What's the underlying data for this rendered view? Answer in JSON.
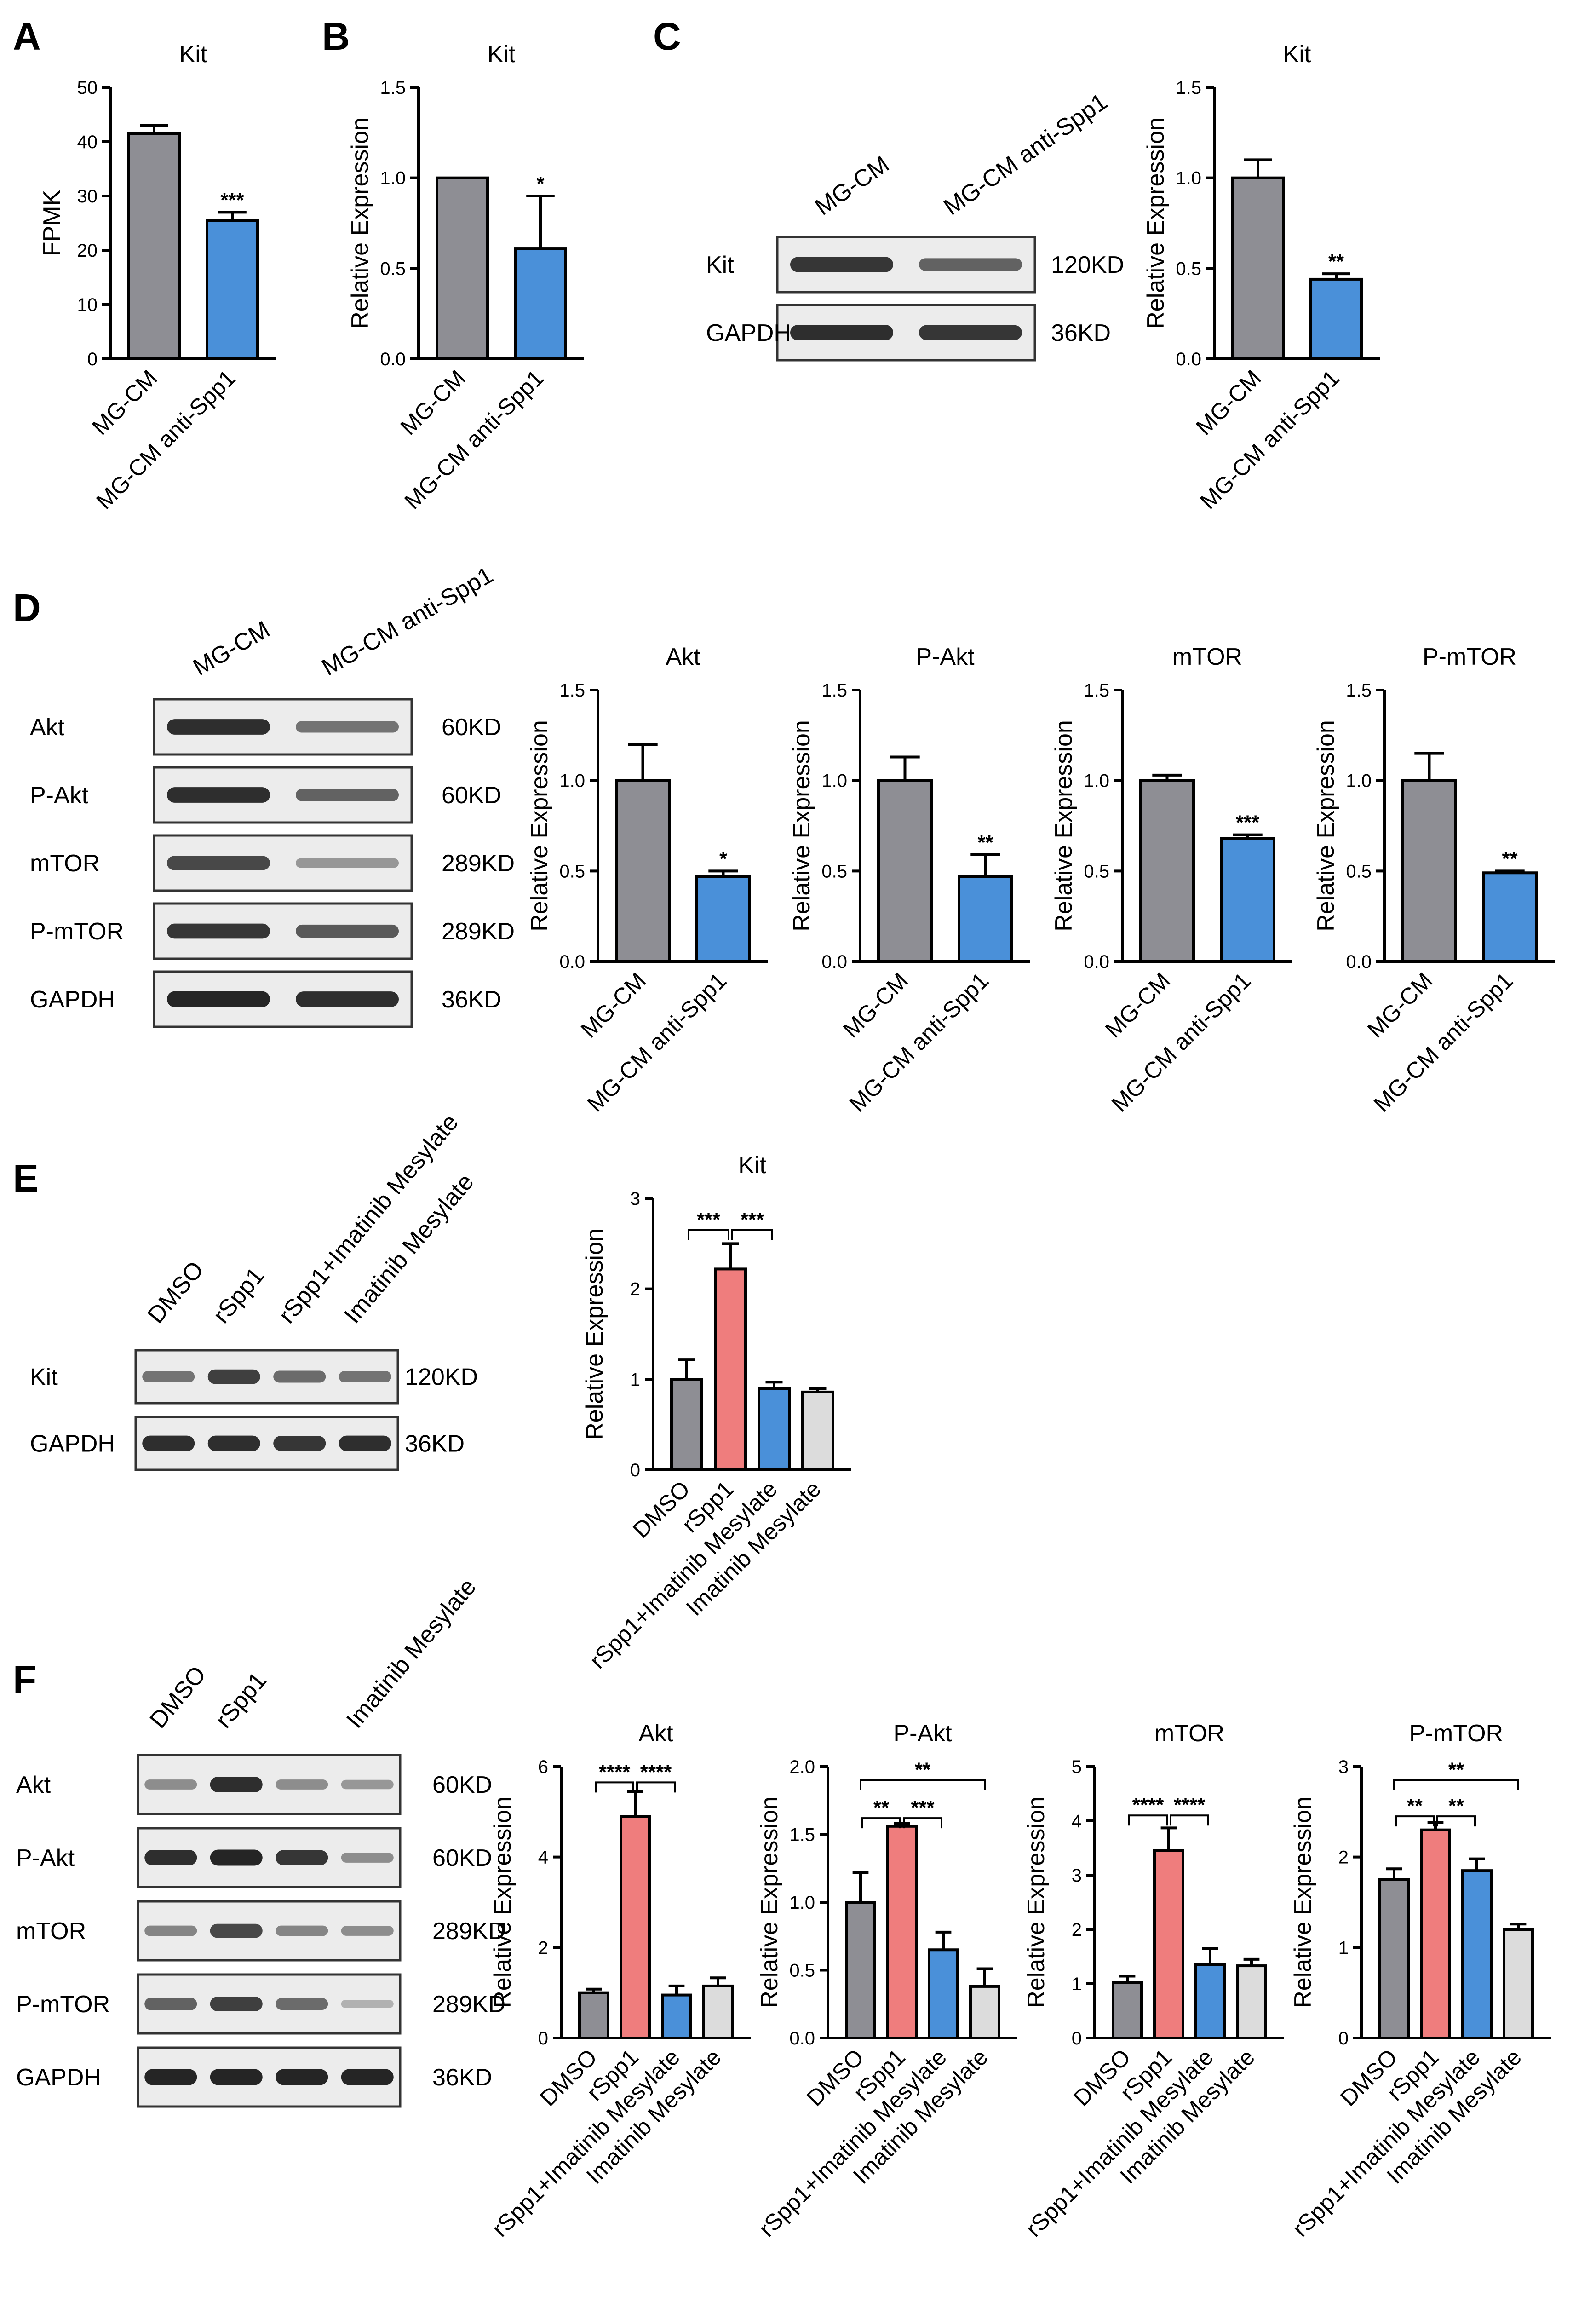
{
  "panels": {
    "A": "A",
    "B": "B",
    "C": "C",
    "D": "D",
    "E": "E",
    "F": "F"
  },
  "colors": {
    "gray": "#8e8e94",
    "blue": "#4a90d9",
    "red": "#ef7d7d",
    "light": "#dcdcdc"
  },
  "chart_data": [
    {
      "id": "A",
      "type": "bar",
      "title": "Kit",
      "ylabel": "FPMK",
      "ylim": [
        0,
        50
      ],
      "ticks": [
        "0",
        "10",
        "20",
        "30",
        "40",
        "50"
      ],
      "categories": [
        "MG-CM",
        "MG-CM anti-Spp1"
      ],
      "values": [
        41.5,
        25.5
      ],
      "errors": [
        1.5,
        1.5
      ],
      "colors": [
        "gray",
        "blue"
      ],
      "stars": [
        "",
        "***"
      ],
      "brackets": []
    },
    {
      "id": "B",
      "type": "bar",
      "title": "Kit",
      "ylabel": "Relative Expression",
      "ylim": [
        0,
        1.5
      ],
      "ticks": [
        "0.0",
        "0.5",
        "1.0",
        "1.5"
      ],
      "categories": [
        "MG-CM",
        "MG-CM anti-Spp1"
      ],
      "values": [
        1.0,
        0.61
      ],
      "errors": [
        0,
        0.29
      ],
      "colors": [
        "gray",
        "blue"
      ],
      "stars": [
        "",
        "*"
      ],
      "brackets": []
    },
    {
      "id": "C",
      "type": "bar",
      "title": "Kit",
      "ylabel": "Relative Expression",
      "ylim": [
        0,
        1.5
      ],
      "ticks": [
        "0.0",
        "0.5",
        "1.0",
        "1.5"
      ],
      "categories": [
        "MG-CM",
        "MG-CM anti-Spp1"
      ],
      "values": [
        1.0,
        0.44
      ],
      "errors": [
        0.1,
        0.03
      ],
      "colors": [
        "gray",
        "blue"
      ],
      "stars": [
        "",
        "**"
      ],
      "brackets": []
    },
    {
      "id": "D1",
      "type": "bar",
      "title": "Akt",
      "ylabel": "Relative Expression",
      "ylim": [
        0,
        1.5
      ],
      "ticks": [
        "0.0",
        "0.5",
        "1.0",
        "1.5"
      ],
      "categories": [
        "MG-CM",
        "MG-CM anti-Spp1"
      ],
      "values": [
        1.0,
        0.47
      ],
      "errors": [
        0.2,
        0.03
      ],
      "colors": [
        "gray",
        "blue"
      ],
      "stars": [
        "",
        "*"
      ],
      "brackets": []
    },
    {
      "id": "D2",
      "type": "bar",
      "title": "P-Akt",
      "ylabel": "Relative Expression",
      "ylim": [
        0,
        1.5
      ],
      "ticks": [
        "0.0",
        "0.5",
        "1.0",
        "1.5"
      ],
      "categories": [
        "MG-CM",
        "MG-CM anti-Spp1"
      ],
      "values": [
        1.0,
        0.47
      ],
      "errors": [
        0.13,
        0.12
      ],
      "colors": [
        "gray",
        "blue"
      ],
      "stars": [
        "",
        "**"
      ],
      "brackets": []
    },
    {
      "id": "D3",
      "type": "bar",
      "title": "mTOR",
      "ylabel": "Relative Expression",
      "ylim": [
        0,
        1.5
      ],
      "ticks": [
        "0.0",
        "0.5",
        "1.0",
        "1.5"
      ],
      "categories": [
        "MG-CM",
        "MG-CM anti-Spp1"
      ],
      "values": [
        1.0,
        0.68
      ],
      "errors": [
        0.03,
        0.02
      ],
      "colors": [
        "gray",
        "blue"
      ],
      "stars": [
        "",
        "***"
      ],
      "brackets": []
    },
    {
      "id": "D4",
      "type": "bar",
      "title": "P-mTOR",
      "ylabel": "Relative Expression",
      "ylim": [
        0,
        1.5
      ],
      "ticks": [
        "0.0",
        "0.5",
        "1.0",
        "1.5"
      ],
      "categories": [
        "MG-CM",
        "MG-CM anti-Spp1"
      ],
      "values": [
        1.0,
        0.49
      ],
      "errors": [
        0.15,
        0.01
      ],
      "colors": [
        "gray",
        "blue"
      ],
      "stars": [
        "",
        "**"
      ],
      "brackets": []
    },
    {
      "id": "E",
      "type": "bar",
      "title": "Kit",
      "ylabel": "Relative Expression",
      "ylim": [
        0,
        3
      ],
      "ticks": [
        "0",
        "1",
        "2",
        "3"
      ],
      "categories": [
        "DMSO",
        "rSpp1",
        "rSpp1+Imatinib Mesylate",
        "Imatinib Mesylate"
      ],
      "values": [
        1.0,
        2.22,
        0.9,
        0.86
      ],
      "errors": [
        0.22,
        0.28,
        0.07,
        0.04
      ],
      "colors": [
        "gray",
        "red",
        "blue",
        "light"
      ],
      "stars": [
        "",
        "",
        "",
        ""
      ],
      "brackets": [
        {
          "from": 0,
          "to": 1,
          "level": 2.65,
          "label": "***"
        },
        {
          "from": 1,
          "to": 2,
          "level": 2.65,
          "label": "***"
        }
      ]
    },
    {
      "id": "F1",
      "type": "bar",
      "title": "Akt",
      "ylabel": "Relative Expression",
      "ylim": [
        0,
        6
      ],
      "ticks": [
        "0",
        "2",
        "4",
        "6"
      ],
      "categories": [
        "DMSO",
        "rSpp1",
        "rSpp1+Imatinib Mesylate",
        "Imatinib Mesylate"
      ],
      "values": [
        1.0,
        4.9,
        0.95,
        1.15
      ],
      "errors": [
        0.08,
        0.55,
        0.2,
        0.18
      ],
      "colors": [
        "gray",
        "red",
        "blue",
        "light"
      ],
      "stars": [
        "",
        "",
        "",
        ""
      ],
      "brackets": [
        {
          "from": 0,
          "to": 1,
          "level": 5.65,
          "label": "****"
        },
        {
          "from": 1,
          "to": 2,
          "level": 5.65,
          "label": "****"
        }
      ]
    },
    {
      "id": "F2",
      "type": "bar",
      "title": "P-Akt",
      "ylabel": "Relative Expression",
      "ylim": [
        0,
        2.0
      ],
      "ticks": [
        "0.0",
        "0.5",
        "1.0",
        "1.5",
        "2.0"
      ],
      "categories": [
        "DMSO",
        "rSpp1",
        "rSpp1+Imatinib Mesylate",
        "Imatinib Mesylate"
      ],
      "values": [
        1.0,
        1.56,
        0.65,
        0.38
      ],
      "errors": [
        0.22,
        0.02,
        0.13,
        0.13
      ],
      "colors": [
        "gray",
        "red",
        "blue",
        "light"
      ],
      "stars": [
        "",
        "",
        "",
        ""
      ],
      "brackets": [
        {
          "from": 0,
          "to": 1,
          "level": 1.62,
          "label": "**"
        },
        {
          "from": 1,
          "to": 2,
          "level": 1.62,
          "label": "***"
        },
        {
          "from": 0,
          "to": 3,
          "level": 1.9,
          "label": "**"
        }
      ]
    },
    {
      "id": "F3",
      "type": "bar",
      "title": "mTOR",
      "ylabel": "Relative Expression",
      "ylim": [
        0,
        5
      ],
      "ticks": [
        "0",
        "1",
        "2",
        "3",
        "4",
        "5"
      ],
      "categories": [
        "DMSO",
        "rSpp1",
        "rSpp1+Imatinib Mesylate",
        "Imatinib Mesylate"
      ],
      "values": [
        1.02,
        3.45,
        1.35,
        1.33
      ],
      "errors": [
        0.12,
        0.42,
        0.3,
        0.12
      ],
      "colors": [
        "gray",
        "red",
        "blue",
        "light"
      ],
      "stars": [
        "",
        "",
        "",
        ""
      ],
      "brackets": [
        {
          "from": 0,
          "to": 1,
          "level": 4.1,
          "label": "****"
        },
        {
          "from": 1,
          "to": 2,
          "level": 4.1,
          "label": "****"
        }
      ]
    },
    {
      "id": "F4",
      "type": "bar",
      "title": "P-mTOR",
      "ylabel": "Relative Expression",
      "ylim": [
        0,
        3
      ],
      "ticks": [
        "0",
        "1",
        "2",
        "3"
      ],
      "categories": [
        "DMSO",
        "rSpp1",
        "rSpp1+Imatinib Mesylate",
        "Imatinib Mesylate"
      ],
      "values": [
        1.75,
        2.3,
        1.85,
        1.2
      ],
      "errors": [
        0.12,
        0.08,
        0.13,
        0.06
      ],
      "colors": [
        "gray",
        "red",
        "blue",
        "light"
      ],
      "stars": [
        "",
        "",
        "",
        ""
      ],
      "brackets": [
        {
          "from": 0,
          "to": 1,
          "level": 2.45,
          "label": "**"
        },
        {
          "from": 1,
          "to": 2,
          "level": 2.45,
          "label": "**"
        },
        {
          "from": 0,
          "to": 3,
          "level": 2.85,
          "label": "**"
        }
      ]
    }
  ],
  "blots": [
    {
      "id": "C",
      "lanes": [
        "MG-CM",
        "MG-CM anti-Spp1"
      ],
      "rows": [
        {
          "label": "Kit",
          "size": "120KD",
          "bands": [
            0.85,
            0.6
          ]
        },
        {
          "label": "GAPDH",
          "size": "36KD",
          "bands": [
            0.9,
            0.85
          ]
        }
      ]
    },
    {
      "id": "D",
      "lanes": [
        "MG-CM",
        "MG-CM anti-Spp1"
      ],
      "rows": [
        {
          "label": "Akt",
          "size": "60KD",
          "bands": [
            0.9,
            0.5
          ]
        },
        {
          "label": "P-Akt",
          "size": "60KD",
          "bands": [
            0.9,
            0.6
          ]
        },
        {
          "label": "mTOR",
          "size": "289KD",
          "bands": [
            0.75,
            0.3
          ]
        },
        {
          "label": "P-mTOR",
          "size": "289KD",
          "bands": [
            0.85,
            0.65
          ]
        },
        {
          "label": "GAPDH",
          "size": "36KD",
          "bands": [
            0.95,
            0.9
          ]
        }
      ]
    },
    {
      "id": "E",
      "lanes": [
        "DMSO",
        "rSpp1",
        "rSpp1+Imatinib Mesylate",
        "Imatinib Mesylate"
      ],
      "rows": [
        {
          "label": "Kit",
          "size": "120KD",
          "bands": [
            0.5,
            0.8,
            0.55,
            0.5
          ]
        },
        {
          "label": "GAPDH",
          "size": "36KD",
          "bands": [
            0.9,
            0.9,
            0.85,
            0.9
          ]
        }
      ]
    },
    {
      "id": "F",
      "lanes": [
        "DMSO",
        "rSpp1",
        "",
        "Imatinib Mesylate"
      ],
      "rows": [
        {
          "label": "Akt",
          "size": "60KD",
          "bands": [
            0.35,
            0.9,
            0.35,
            0.3
          ]
        },
        {
          "label": "P-Akt",
          "size": "60KD",
          "bands": [
            0.9,
            0.95,
            0.85,
            0.35
          ]
        },
        {
          "label": "mTOR",
          "size": "289KD",
          "bands": [
            0.4,
            0.75,
            0.4,
            0.35
          ]
        },
        {
          "label": "P-mTOR",
          "size": "289KD",
          "bands": [
            0.6,
            0.8,
            0.55,
            0.15
          ]
        },
        {
          "label": "GAPDH",
          "size": "36KD",
          "bands": [
            0.95,
            0.95,
            0.95,
            0.95
          ]
        }
      ]
    }
  ]
}
